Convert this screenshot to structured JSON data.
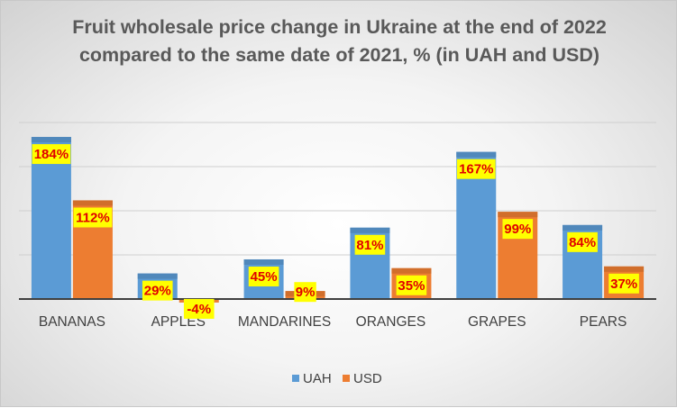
{
  "chart_data": {
    "type": "bar",
    "title": "Fruit wholesale price change in Ukraine at the end of 2022 compared to the same date of 2021, % (in UAH and USD)",
    "categories": [
      "BANANAS",
      "APPLES",
      "MANDARINES",
      "ORANGES",
      "GRAPES",
      "PEARS"
    ],
    "series": [
      {
        "name": "UAH",
        "values": [
          184,
          29,
          45,
          81,
          167,
          84
        ],
        "labels": [
          "184%",
          "29%",
          "45%",
          "81%",
          "167%",
          "84%"
        ],
        "color": "#5b9bd5"
      },
      {
        "name": "USD",
        "values": [
          112,
          -4,
          9,
          35,
          99,
          37
        ],
        "labels": [
          "112%",
          "-4%",
          "9%",
          "35%",
          "99%",
          "37%"
        ],
        "color": "#ed7d31"
      }
    ],
    "ylim": [
      -10,
      200
    ],
    "grid": true,
    "legend": "bottom",
    "label_style": {
      "background": "#ffff00",
      "text_color": "#e00000"
    }
  }
}
